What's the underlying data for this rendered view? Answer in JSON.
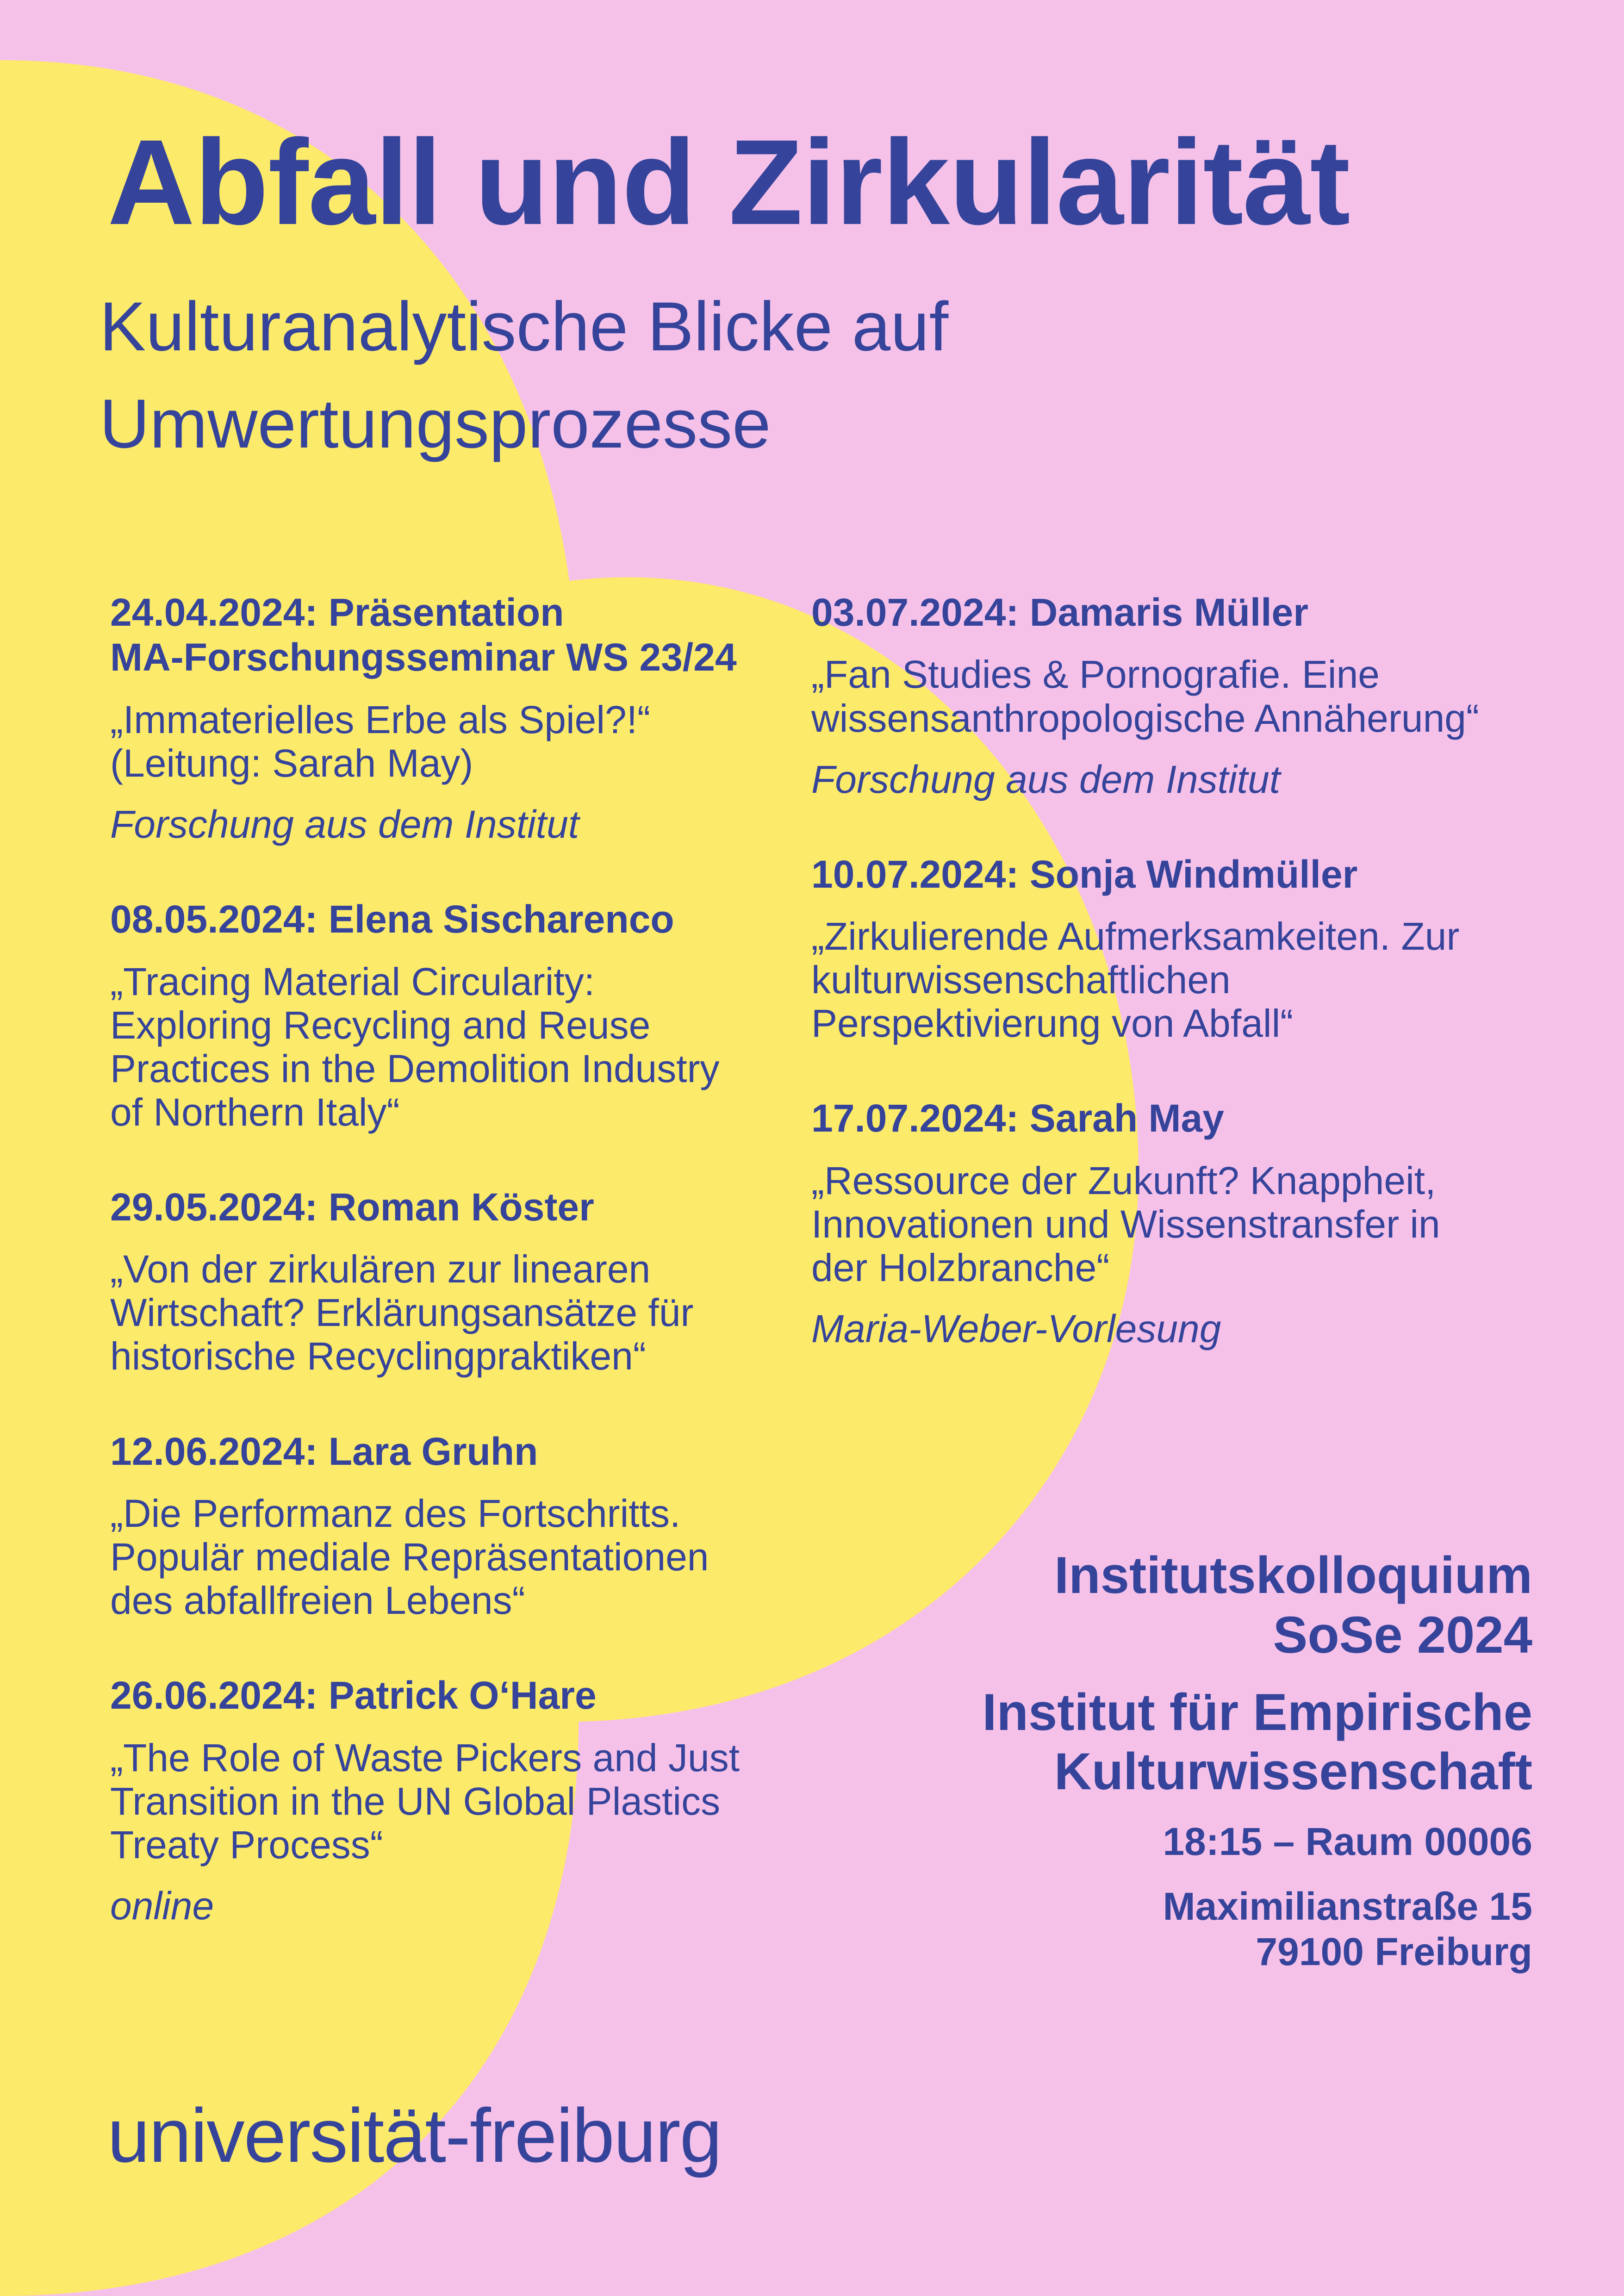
{
  "colors": {
    "background": "#f6c1e9",
    "shape": "#fcea6a",
    "text": "#35449a"
  },
  "title": "Abfall und Zirkularität",
  "subtitle": "Kulturanalytische Blicke auf Umwertungsprozesse",
  "left_events": [
    {
      "head": [
        "24.04.2024: Präsentation",
        "MA-Forschungsseminar WS 23/24"
      ],
      "talk": [
        "„Immaterielles Erbe als Spiel?!“",
        "(Leitung: Sarah May)"
      ],
      "note": "Forschung aus dem Institut"
    },
    {
      "head": [
        "08.05.2024: Elena Sischarenco"
      ],
      "talk": [
        "„Tracing Material Circularity:",
        "Exploring Recycling and Reuse",
        "Practices in the Demolition Industry",
        "of Northern Italy“"
      ],
      "note": ""
    },
    {
      "head": [
        "29.05.2024: Roman Köster"
      ],
      "talk": [
        "„Von der zirkulären zur linearen",
        "Wirtschaft? Erklärungsansätze für",
        "historische Recyclingpraktiken“"
      ],
      "note": ""
    },
    {
      "head": [
        "12.06.2024: Lara Gruhn"
      ],
      "talk": [
        "„Die Performanz des Fortschritts.",
        "Populär mediale Repräsentationen",
        "des abfallfreien Lebens“"
      ],
      "note": ""
    },
    {
      "head": [
        "26.06.2024: Patrick O‘Hare"
      ],
      "talk": [
        "„The Role of Waste Pickers and Just",
        "Transition in the UN Global Plastics",
        "Treaty Process“"
      ],
      "note": "online"
    }
  ],
  "right_events": [
    {
      "head": [
        "03.07.2024: Damaris Müller"
      ],
      "talk": [
        "„Fan Studies & Pornografie. Eine",
        "wissensanthropologische Annäherung“"
      ],
      "note": "Forschung aus dem Institut"
    },
    {
      "head": [
        "10.07.2024: Sonja Windmüller"
      ],
      "talk": [
        "„Zirkulierende Aufmerksamkeiten. Zur",
        "kulturwissenschaftlichen",
        "Perspektivierung von Abfall“"
      ],
      "note": ""
    },
    {
      "head": [
        "17.07.2024: Sarah May"
      ],
      "talk": [
        "„Ressource der Zukunft? Knappheit,",
        "Innovationen und Wissenstransfer in",
        "der Holzbranche“"
      ],
      "note": "Maria-Weber-Vorlesung"
    }
  ],
  "info": {
    "colloquium": [
      "Institutskolloquium",
      "SoSe 2024"
    ],
    "institute": [
      "Institut für Empirische",
      "Kulturwissenschaft"
    ],
    "time_room": "18:15 – Raum 00006",
    "address": [
      "Maximilianstraße 15",
      "79100 Freiburg"
    ]
  },
  "logo": {
    "part1": "universität",
    "hyphen": "-",
    "part2": "freiburg"
  }
}
